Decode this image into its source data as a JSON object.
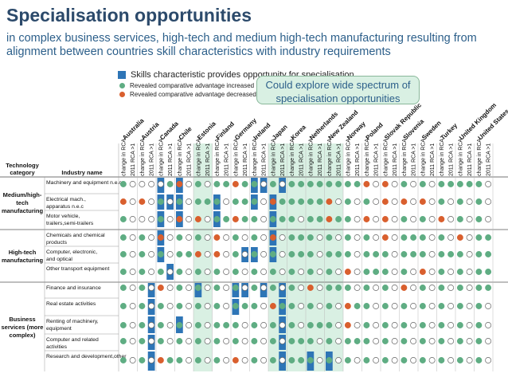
{
  "title": "Specialisation opportunities",
  "subtitle": "in complex business services, high-tech and medium high-tech manufacturing resulting from alignment between countries skill characteristics with industry requirements",
  "legend": {
    "skills": "Skills characteristic provides opportunity for specialisation",
    "increased": "Revealed comparative advantage increased",
    "decreased": "Revealed comparative advantage decreased"
  },
  "callout": "Could explore wide spectrum of specialisation opportunities",
  "colors": {
    "increased": "#5fad83",
    "decreased": "#d95f2e",
    "skill": "#2e75b6",
    "highlight": "#d9f0e3",
    "title": "#2c4a6b"
  },
  "chart_data": {
    "type": "table",
    "header": {
      "technology": "Technology category",
      "industry": "Industry name"
    },
    "sub_columns": [
      "change in RCA",
      "2011 RCA >1"
    ],
    "countries": [
      "Australia",
      "Austria",
      "Canada",
      "Chile",
      "Estonia",
      "Finland",
      "Germany",
      "Ireland",
      "Japan",
      "Korea",
      "Netherlands",
      "New Zealand",
      "Norway",
      "Poland",
      "Slovak Republic",
      "Slovenia",
      "Sweden",
      "Turkey",
      "United Kingdom",
      "United States"
    ],
    "highlighted_countries": [
      "Estonia",
      "Japan",
      "Korea",
      "Netherlands",
      "New Zealand"
    ],
    "groups": [
      {
        "category": "Medium/high-tech manufacturing",
        "rows": [
          0,
          1,
          2
        ]
      },
      {
        "category": "High-tech manufacturing",
        "rows": [
          3,
          4,
          5
        ]
      },
      {
        "category": "Business services (more complex)",
        "rows": [
          6,
          7,
          8,
          9,
          10
        ]
      }
    ],
    "industries": [
      {
        "name": "Machinery and equipment n.e.c",
        "change": "GWWRGGRGGGGGGRRGGGGGGWGWGGGGRGRGGWRGGWRG",
        "rca": "WWGWWGGWWGGGGWWWWGGWWWGWGWGWGWWGWWWWGGWG",
        "skill": [
          4,
          6,
          14,
          15,
          17
        ]
      },
      {
        "name": "Electrical mach., apparatus n.e.c",
        "change": "RRGGGGGGRGGRGGRRRGGGGGGGRGRGGGGGRRGGRGRR",
        "rca": "WWWWGWGWGGGWWWWWWWWWGWGWGGWWGWGWWWWWGWWW",
        "skill": [
          4,
          5,
          6,
          10,
          14,
          16
        ]
      },
      {
        "name": "Motor vehicle, trailers,semi-trailers",
        "change": "GWGRRGRGGGGRGRRGGRGGRWGGGGRRGGGGRGGGRGGG",
        "rca": "WWWWWGGWGWGGWWWWWWWWWWGWGWWWWWWWWWGWWWWW",
        "skill": [
          4,
          6,
          10,
          16
        ]
      },
      {
        "name": "Chemicals and chemical products",
        "change": "GGRGGRGGRGGGGGRGGGRGGGGGGGRGGRRGRGGGRGGG",
        "rca": "WWWWWWWWWGWWWWWGWWWGWWWGWGWWWWWGWGWWWGWG",
        "skill": [
          4,
          16
        ]
      },
      {
        "name": "Computer, electronic, and optical",
        "change": "GGGGRRGGGGGGGGGGGGGGRGRGGGGGGGGGRGGGRGGG",
        "rca": "WWWGWWWWWGWGWGWGWGWGWWWGWGWWWWWWWGWGWWWG",
        "skill": [
          4,
          13,
          14,
          16
        ]
      },
      {
        "name": "Other transport equipment",
        "change": "GGGGGGGGGGGGRGGGRGGGGGGGGGGRGGGGRGGGGGGG",
        "rca": "WWWWWWWWWWWWWGWWWWWGWWWGWGWWWWWWWWWWWGWG",
        "skill": [
          5
        ]
      },
      {
        "name": "Finance and insurance",
        "change": "GGRGGGGGGGRGGGGRGGGGGGRGGGRGGGGRGGGRGGGG",
        "rca": "WWWWWWWWWWWGWWWWWWWGWWWWWGWWWWWGWWWWWGWG",
        "skill": [
          3,
          8,
          12,
          13,
          15,
          17
        ]
      },
      {
        "name": "Real estate activities",
        "change": "GGGGGGGGRGGGRGGGGGGGGRGGGGGGGGGGGGRGGGGG",
        "rca": "WWWWWWGWGWWWGWWWWWWWWWWWGWWWWWWWWWWWGGWG",
        "skill": [
          3,
          12,
          17
        ]
      },
      {
        "name": "Renting of machinery, equipment",
        "change": "GGGGGGGGGGGGRGGGGGGGGGGGGGGRGGGGGGGGGGGG",
        "rca": "WWWWWGWWWWGWWWWWWWWWWGGWGGWWWWWWGWWWWWWG",
        "skill": [
          3,
          6,
          17
        ]
      },
      {
        "name": "Computer and related activities",
        "change": "GGGGGGGGGGGGGGGGGGGGGGGGGGGGGGGGGGGGGGGG",
        "rca": "WWWWWWWWWGWWGWWWWWWWWGGWGGWWWWWWGWGWWWWG",
        "skill": [
          3,
          17
        ]
      },
      {
        "name": "Research and development,other",
        "change": "GGRGGGRGGGGGGGGGGGGGGGGGGGGGGRGGGRGGGGGG",
        "rca": "WWGWWWWWWGWWWWWWWWWWWWWGWWWWWWWWWWGWWWWG",
        "skill": [
          3,
          17,
          20,
          22
        ]
      }
    ]
  }
}
